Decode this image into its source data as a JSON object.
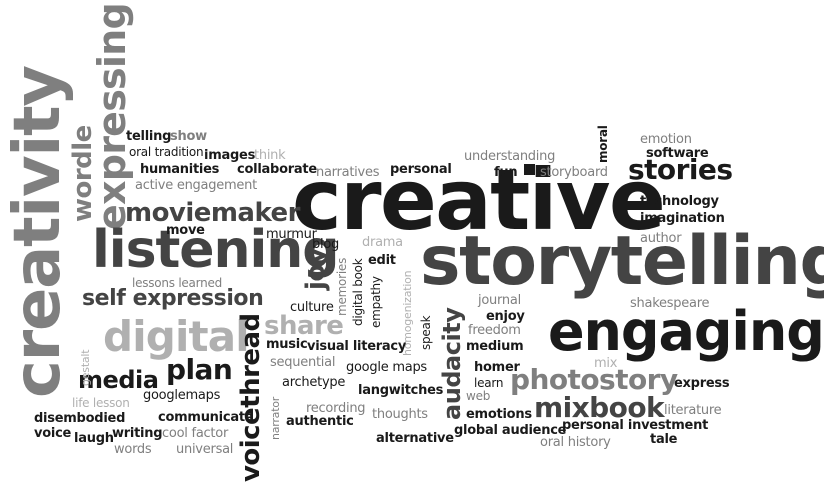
{
  "colors": {
    "background": "#ffffff",
    "dark": "#1a1a1a",
    "gray": "#7f7f7f",
    "light": "#b0b0b0"
  },
  "words": {
    "creativity": "creativity",
    "expressing": "expressing",
    "wordle": "wordle",
    "creative": "creative",
    "storytelling": "storytelling",
    "engaging": "engaging",
    "listening": "listening",
    "digital": "digital",
    "self_expression": "self expression",
    "moviemaker": "moviemaker",
    "photostory": "photostory",
    "mixbook": "mixbook",
    "stories": "stories",
    "voicethread": "voicethread",
    "audacity": "audacity",
    "share": "share",
    "joy": "joy",
    "plan": "plan",
    "media": "media",
    "telling": "telling",
    "show": "show",
    "oral_tradition": "oral tradition",
    "humanities": "humanities",
    "images": "images",
    "think": "think",
    "collaborate": "collaborate",
    "active_engagement": "active engagement",
    "narratives": "narratives",
    "personal": "personal",
    "understanding": "understanding",
    "fun": "fun",
    "storyboard": "storyboard",
    "moral": "moral",
    "emotion": "emotion",
    "software": "software",
    "technology": "technology",
    "imagination": "imagination",
    "author": "author",
    "move": "move",
    "murmur": "murmur",
    "blog": "blog",
    "drama": "drama",
    "edit": "edit",
    "digital_book": "digital book",
    "memories": "memories",
    "empathy": "empathy",
    "homogenization": "homogenization",
    "lessons_learned": "lessons learned",
    "culture": "culture",
    "journal": "journal",
    "enjoy": "enjoy",
    "shakespeare": "shakespeare",
    "freedom": "freedom",
    "medium": "medium",
    "speak": "speak",
    "music": "music",
    "visual_literacy": "visual literacy",
    "sequential": "sequential",
    "google_maps": "google maps",
    "homer": "homer",
    "learn": "learn",
    "web": "web",
    "mix": "mix",
    "gestalt": "gestalt",
    "archetype": "archetype",
    "langwitches": "langwitches",
    "express": "express",
    "googlemaps": "googlemaps",
    "life_lesson": "life lesson",
    "narrator": "narrator",
    "recording": "recording",
    "thoughts": "thoughts",
    "emotions": "emotions",
    "literature": "literature",
    "disembodied": "disembodied",
    "communicate": "communicate",
    "authentic": "authentic",
    "personal_investment": "personal investment",
    "voice": "voice",
    "laugh": "laugh",
    "writing": "writing",
    "cool_factor": "cool factor",
    "alternative": "alternative",
    "global_audience": "global audience",
    "tale": "tale",
    "oral_history": "oral history",
    "words": "words",
    "universal": "universal"
  }
}
